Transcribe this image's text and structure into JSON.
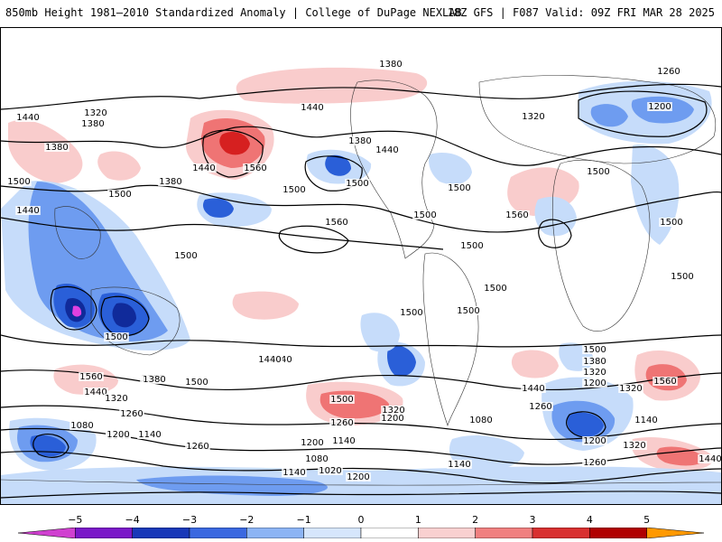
{
  "header": {
    "title_left": "850mb Height 1981–2010 Standardized Anomaly | College of DuPage NEXLAB",
    "title_right": "18Z GFS | F087 Valid: 09Z FRI MAR 28 2025"
  },
  "map": {
    "contour_labels": [
      "1380",
      "1260",
      "1440",
      "1320",
      "1380",
      "1440",
      "1380",
      "1320",
      "1200",
      "1440",
      "1560",
      "1380",
      "1380",
      "1500",
      "1500",
      "1440",
      "1500",
      "1440",
      "1500",
      "1500",
      "1560",
      "1500",
      "1560",
      "1500",
      "1500",
      "1500",
      "1500",
      "1500",
      "1500",
      "1500",
      "1500",
      "1500",
      "1440",
      "1380",
      "1560",
      "1440",
      "1320",
      "1260",
      "1140",
      "1080",
      "1200",
      "1140",
      "1260",
      "1440",
      "1500",
      "1380",
      "1260",
      "1200",
      "1080",
      "1140",
      "1020",
      "1140",
      "1200",
      "1320",
      "1200",
      "1320",
      "1260",
      "1140",
      "1080",
      "1200",
      "1140",
      "1500",
      "1380",
      "1320",
      "1200",
      "1560",
      "1440",
      "1260",
      "1500",
      "1320",
      "1440"
    ],
    "colors": {
      "anom_neg_1": "#c6dcfa",
      "anom_neg_2": "#6e9cf0",
      "anom_neg_3": "#2a5fd8",
      "anom_neg_4": "#102a9a",
      "anom_neg_5": "#e040e0",
      "anom_pos_1": "#f9cccc",
      "anom_pos_2": "#ef7474",
      "anom_pos_3": "#d62020",
      "anom_pos_4": "#a00000",
      "land": "#333333",
      "contour": "#000000"
    }
  },
  "colorbar": {
    "tick_labels": [
      "−5",
      "−4",
      "−3",
      "−2",
      "−1",
      "0",
      "1",
      "2",
      "3",
      "4",
      "5"
    ],
    "colors": [
      "#d040d0",
      "#7a18c8",
      "#1838b8",
      "#3a68e0",
      "#8cb4f4",
      "#d6e6fc",
      "#ffffff",
      "#f9d0d0",
      "#f08080",
      "#d83030",
      "#b00000",
      "#ff9900"
    ]
  }
}
